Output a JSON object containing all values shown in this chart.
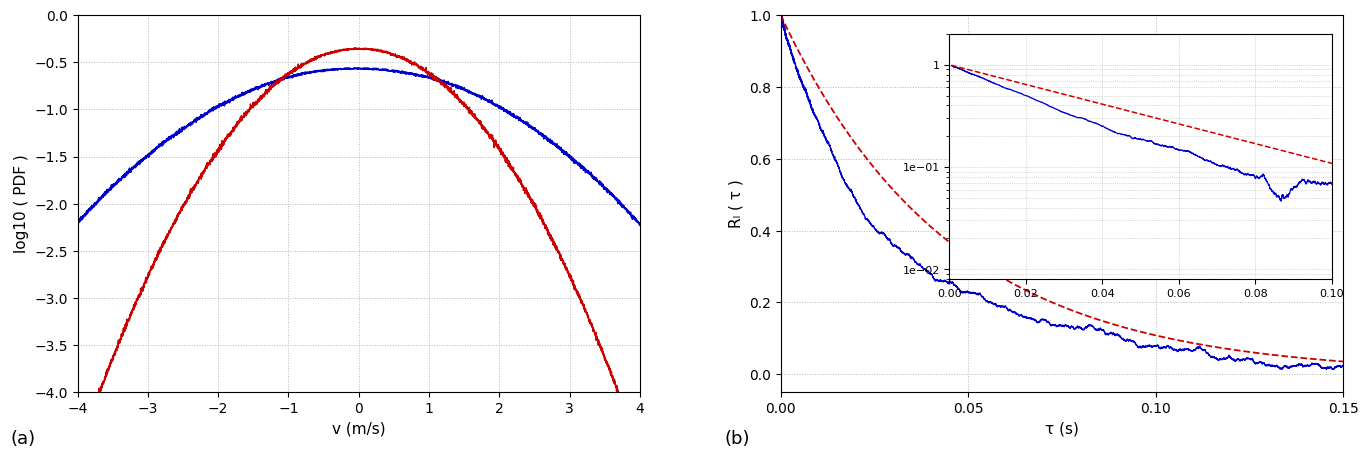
{
  "panel_a": {
    "xlim": [
      -4,
      4
    ],
    "ylim": [
      -4,
      0
    ],
    "xlabel": "v (m/s)",
    "ylabel": "log10 ( PDF )",
    "yticks": [
      0,
      -0.5,
      -1,
      -1.5,
      -2,
      -2.5,
      -3,
      -3.5,
      -4
    ],
    "xticks": [
      -4,
      -3,
      -2,
      -1,
      0,
      1,
      2,
      3,
      4
    ],
    "blue_sigma": 1.45,
    "red_sigma": 0.9,
    "blue_color": "#0000cc",
    "red_color": "#cc0000",
    "label": "(a)"
  },
  "panel_b": {
    "xlim": [
      0,
      0.15
    ],
    "ylim": [
      -0.05,
      1.0
    ],
    "xlabel": "τ (s)",
    "ylabel": "Rₗ ( τ )",
    "xticks": [
      0,
      0.05,
      0.1,
      0.15
    ],
    "yticks": [
      0,
      0.2,
      0.4,
      0.6,
      0.8,
      1.0
    ],
    "T_L_blue": 0.028,
    "T_L_red": 0.045,
    "blue_color": "#0000cc",
    "red_color": "#cc0000",
    "label": "(b)",
    "inset": {
      "xlim": [
        0,
        0.1
      ],
      "ylim_log": [
        0.008,
        2.0
      ],
      "xticks": [
        0,
        0.02,
        0.04,
        0.06,
        0.08,
        0.1
      ],
      "yticks_log": [
        0.01,
        0.1,
        1.0
      ]
    }
  },
  "background_color": "#ffffff",
  "grid_color": "#888888",
  "grid_alpha": 0.6,
  "grid_style": ":"
}
